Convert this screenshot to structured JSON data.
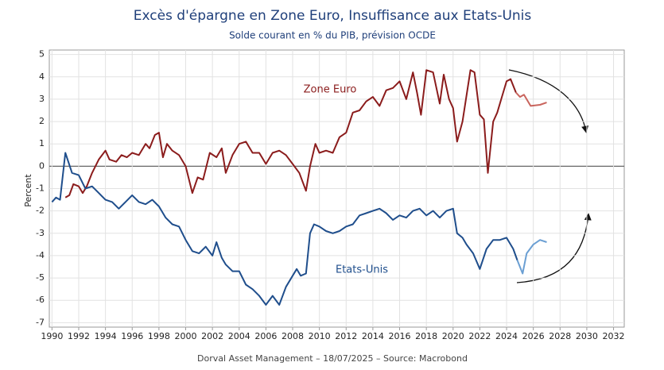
{
  "chart_data": {
    "type": "line",
    "title": "Excès d'épargne en Zone Euro, Insuffisance aux Etats-Unis",
    "subtitle": "Solde courant en % du PIB, prévision OCDE",
    "y_label": "Percent",
    "source": "Dorval Asset Management – 18/07/2025 –   Source: Macrobond",
    "xlim": [
      1989.8,
      2032.8
    ],
    "ylim": [
      -7.2,
      5.2
    ],
    "xticks": [
      1990,
      1992,
      1994,
      1996,
      1998,
      2000,
      2002,
      2004,
      2006,
      2008,
      2010,
      2012,
      2014,
      2016,
      2018,
      2020,
      2022,
      2024,
      2026,
      2028,
      2030,
      2032
    ],
    "yticks": [
      -7,
      -6,
      -5,
      -4,
      -3,
      -2,
      -1,
      0,
      1,
      2,
      3,
      4,
      5
    ],
    "grid": true,
    "series": [
      {
        "name": "Zone Euro",
        "color": "#8b1c1c",
        "forecast_color": "#c9645d",
        "x": [
          1991.0,
          1991.3,
          1991.6,
          1992.0,
          1992.3,
          1992.6,
          1993.0,
          1993.5,
          1994.0,
          1994.3,
          1994.8,
          1995.2,
          1995.6,
          1996.0,
          1996.5,
          1997.0,
          1997.3,
          1997.7,
          1998.0,
          1998.3,
          1998.6,
          1999.0,
          1999.5,
          2000.0,
          2000.5,
          2000.9,
          2001.3,
          2001.8,
          2002.3,
          2002.7,
          2003.0,
          2003.5,
          2004.0,
          2004.5,
          2005.0,
          2005.5,
          2006.0,
          2006.5,
          2007.0,
          2007.5,
          2008.0,
          2008.5,
          2009.0,
          2009.3,
          2009.7,
          2010.0,
          2010.5,
          2011.0,
          2011.5,
          2012.0,
          2012.5,
          2013.0,
          2013.5,
          2014.0,
          2014.5,
          2015.0,
          2015.5,
          2016.0,
          2016.5,
          2017.0,
          2017.3,
          2017.6,
          2018.0,
          2018.5,
          2019.0,
          2019.3,
          2019.7,
          2020.0,
          2020.3,
          2020.7,
          2021.3,
          2021.6,
          2022.0,
          2022.3,
          2022.6,
          2023.0,
          2023.3,
          2023.6,
          2024.0,
          2024.3,
          2024.7
        ],
        "values": [
          -1.4,
          -1.3,
          -0.8,
          -0.9,
          -1.2,
          -0.9,
          -0.3,
          0.3,
          0.7,
          0.3,
          0.2,
          0.5,
          0.4,
          0.6,
          0.5,
          1.0,
          0.8,
          1.4,
          1.5,
          0.4,
          1.0,
          0.7,
          0.5,
          0.0,
          -1.2,
          -0.5,
          -0.6,
          0.6,
          0.4,
          0.8,
          -0.3,
          0.5,
          1.0,
          1.1,
          0.6,
          0.6,
          0.1,
          0.6,
          0.7,
          0.5,
          0.1,
          -0.3,
          -1.1,
          0.0,
          1.0,
          0.6,
          0.7,
          0.6,
          1.3,
          1.5,
          2.4,
          2.5,
          2.9,
          3.1,
          2.7,
          3.4,
          3.5,
          3.8,
          3.0,
          4.2,
          3.3,
          2.3,
          4.3,
          4.2,
          2.8,
          4.1,
          3.0,
          2.6,
          1.1,
          2.0,
          4.3,
          4.2,
          2.3,
          2.1,
          -0.3,
          2.0,
          2.4,
          3.0,
          3.8,
          3.9,
          3.3
        ],
        "forecast_x": [
          2024.7,
          2025.0,
          2025.3,
          2025.8,
          2026.5,
          2027.0
        ],
        "forecast_values": [
          3.3,
          3.1,
          3.2,
          2.7,
          2.75,
          2.85
        ]
      },
      {
        "name": "Etats-Unis",
        "color": "#1f4e8c",
        "forecast_color": "#6b9fd3",
        "x": [
          1990.0,
          1990.3,
          1990.6,
          1991.0,
          1991.5,
          1992.0,
          1992.5,
          1993.0,
          1993.5,
          1994.0,
          1994.5,
          1995.0,
          1995.5,
          1996.0,
          1996.5,
          1997.0,
          1997.5,
          1998.0,
          1998.5,
          1999.0,
          1999.5,
          2000.0,
          2000.5,
          2001.0,
          2001.5,
          2002.0,
          2002.3,
          2002.7,
          2003.0,
          2003.5,
          2004.0,
          2004.5,
          2005.0,
          2005.5,
          2006.0,
          2006.5,
          2007.0,
          2007.5,
          2008.0,
          2008.3,
          2008.6,
          2009.0,
          2009.3,
          2009.6,
          2010.0,
          2010.5,
          2011.0,
          2011.5,
          2012.0,
          2012.5,
          2013.0,
          2013.5,
          2014.0,
          2014.5,
          2015.0,
          2015.5,
          2016.0,
          2016.5,
          2017.0,
          2017.5,
          2018.0,
          2018.5,
          2019.0,
          2019.5,
          2020.0,
          2020.3,
          2020.7,
          2021.0,
          2021.5,
          2022.0,
          2022.5,
          2023.0,
          2023.5,
          2024.0,
          2024.5,
          2024.8
        ],
        "values": [
          -1.6,
          -1.4,
          -1.5,
          0.6,
          -0.3,
          -0.4,
          -1.0,
          -0.9,
          -1.2,
          -1.5,
          -1.6,
          -1.9,
          -1.6,
          -1.3,
          -1.6,
          -1.7,
          -1.5,
          -1.8,
          -2.3,
          -2.6,
          -2.7,
          -3.3,
          -3.8,
          -3.9,
          -3.6,
          -4.0,
          -3.4,
          -4.1,
          -4.4,
          -4.7,
          -4.7,
          -5.3,
          -5.5,
          -5.8,
          -6.2,
          -5.8,
          -6.2,
          -5.4,
          -4.9,
          -4.6,
          -4.9,
          -4.8,
          -3.0,
          -2.6,
          -2.7,
          -2.9,
          -3.0,
          -2.9,
          -2.7,
          -2.6,
          -2.2,
          -2.1,
          -2.0,
          -1.9,
          -2.1,
          -2.4,
          -2.2,
          -2.3,
          -2.0,
          -1.9,
          -2.2,
          -2.0,
          -2.3,
          -2.0,
          -1.9,
          -3.0,
          -3.2,
          -3.5,
          -3.9,
          -4.6,
          -3.7,
          -3.3,
          -3.3,
          -3.2,
          -3.7,
          -4.2
        ],
        "forecast_x": [
          2024.8,
          2025.2,
          2025.5,
          2026.0,
          2026.5,
          2027.0
        ],
        "forecast_values": [
          -4.2,
          -4.8,
          -3.9,
          -3.5,
          -3.3,
          -3.4
        ]
      }
    ]
  }
}
